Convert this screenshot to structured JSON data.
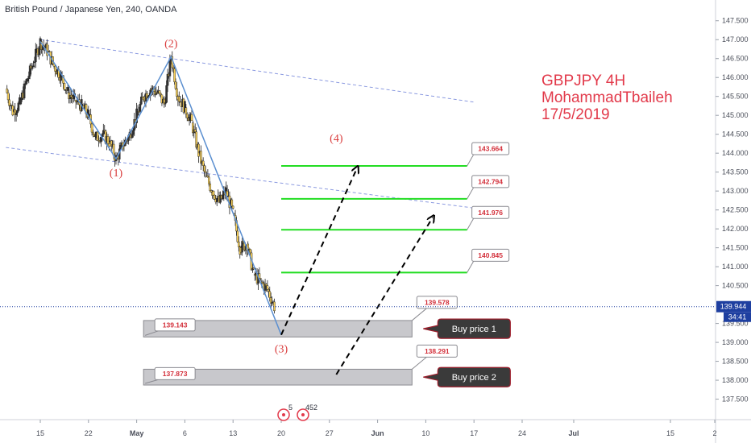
{
  "header": {
    "title": "British Pound / Japanese Yen, 240, OANDA"
  },
  "watermark": {
    "line1": "GBPJPY 4H",
    "line2": "MohammadTbaileh",
    "line3": "17/5/2019"
  },
  "current_price": {
    "value": 139.944,
    "label": "139.944",
    "countdown": "34:41",
    "color": "#1e3fa0"
  },
  "chart_data": {
    "type": "line",
    "symbol": "GBPJPY",
    "timeframe": "240",
    "broker": "OANDA",
    "x_tick_labels": [
      "15",
      "22",
      "May",
      "6",
      "13",
      "20",
      "27",
      "Jun",
      "10",
      "17",
      "24",
      "Jul",
      "15",
      "2"
    ],
    "y_tick_labels": [
      "147.500",
      "147.000",
      "146.500",
      "146.000",
      "145.500",
      "145.000",
      "144.500",
      "144.000",
      "143.500",
      "143.000",
      "142.500",
      "142.000",
      "141.500",
      "141.000",
      "140.500",
      "139.500",
      "139.000",
      "138.500",
      "138.000",
      "137.500"
    ],
    "ylim": [
      137.15,
      147.75
    ],
    "price_path": [
      {
        "date": "2019-04-10",
        "price": 145.7
      },
      {
        "date": "2019-04-11",
        "price": 145.1
      },
      {
        "date": "2019-04-12",
        "price": 145.3
      },
      {
        "date": "2019-04-13",
        "price": 145.9
      },
      {
        "date": "2019-04-14",
        "price": 146.4
      },
      {
        "date": "2019-04-15",
        "price": 146.95
      },
      {
        "date": "2019-04-16",
        "price": 146.7
      },
      {
        "date": "2019-04-17",
        "price": 146.3
      },
      {
        "date": "2019-04-18",
        "price": 146.05
      },
      {
        "date": "2019-04-19",
        "price": 145.6
      },
      {
        "date": "2019-04-20",
        "price": 145.4
      },
      {
        "date": "2019-04-21",
        "price": 145.25
      },
      {
        "date": "2019-04-22",
        "price": 145.0
      },
      {
        "date": "2019-04-23",
        "price": 144.4
      },
      {
        "date": "2019-04-24",
        "price": 144.5
      },
      {
        "date": "2019-04-25",
        "price": 144.3
      },
      {
        "date": "2019-04-26",
        "price": 143.85
      },
      {
        "date": "2019-04-27",
        "price": 144.2
      },
      {
        "date": "2019-04-28",
        "price": 144.5
      },
      {
        "date": "2019-04-29",
        "price": 145.0
      },
      {
        "date": "2019-04-30",
        "price": 145.5
      },
      {
        "date": "2019-05-01",
        "price": 145.7
      },
      {
        "date": "2019-05-02",
        "price": 145.6
      },
      {
        "date": "2019-05-03",
        "price": 145.3
      },
      {
        "date": "2019-05-04",
        "price": 146.55
      },
      {
        "date": "2019-05-05",
        "price": 145.5
      },
      {
        "date": "2019-05-06",
        "price": 145.2
      },
      {
        "date": "2019-05-07",
        "price": 144.8
      },
      {
        "date": "2019-05-08",
        "price": 144.0
      },
      {
        "date": "2019-05-09",
        "price": 143.4
      },
      {
        "date": "2019-05-10",
        "price": 143.0
      },
      {
        "date": "2019-05-11",
        "price": 142.7
      },
      {
        "date": "2019-05-12",
        "price": 143.0
      },
      {
        "date": "2019-05-13",
        "price": 142.4
      },
      {
        "date": "2019-05-14",
        "price": 141.5
      },
      {
        "date": "2019-05-15",
        "price": 141.6
      },
      {
        "date": "2019-05-16",
        "price": 140.8
      },
      {
        "date": "2019-05-17",
        "price": 140.6
      },
      {
        "date": "2019-05-18",
        "price": 140.4
      },
      {
        "date": "2019-05-19",
        "price": 139.95
      }
    ],
    "wave_lines": [
      {
        "label": "(1)",
        "date": "2019-04-26",
        "price": 143.85,
        "label_pos": "below"
      },
      {
        "label": "(2)",
        "date": "2019-05-04",
        "price": 146.55,
        "label_pos": "above"
      },
      {
        "label": "(3)",
        "date": "2019-05-20",
        "price": 139.2,
        "label_pos": "below"
      }
    ],
    "wave_path": [
      {
        "date": "2019-04-15",
        "price": 146.95
      },
      {
        "date": "2019-04-26",
        "price": 143.85
      },
      {
        "date": "2019-05-04",
        "price": 146.55
      },
      {
        "date": "2019-05-20",
        "price": 139.2
      }
    ],
    "channel_lines": [
      {
        "start_date": "2019-04-15",
        "start_price": 147.0,
        "end_date": "2019-06-17",
        "end_price": 145.35
      },
      {
        "start_date": "2019-04-10",
        "start_price": 144.15,
        "end_date": "2019-06-17",
        "end_price": 142.55
      }
    ],
    "wave4_label": {
      "text": "(4)",
      "date": "2019-05-28",
      "price": 144.3
    },
    "targets": [
      {
        "value": 143.664,
        "label": "143.664",
        "start_date": "2019-05-20",
        "end_date": "2019-06-16",
        "color": "#22dd22"
      },
      {
        "value": 142.794,
        "label": "142.794",
        "start_date": "2019-05-20",
        "end_date": "2019-06-16",
        "color": "#22dd22"
      },
      {
        "value": 141.976,
        "label": "141.976",
        "start_date": "2019-05-20",
        "end_date": "2019-06-16",
        "color": "#22dd22"
      },
      {
        "value": 140.845,
        "label": "140.845",
        "start_date": "2019-05-20",
        "end_date": "2019-06-16",
        "color": "#22dd22"
      }
    ],
    "buy_zones": [
      {
        "name": "Buy price 1",
        "low": 139.143,
        "high": 139.578,
        "low_label": "139.143",
        "high_label": "139.578",
        "start_date": "2019-04-30",
        "end_date": "2019-06-08"
      },
      {
        "name": "Buy price 2",
        "low": 137.873,
        "high": 138.291,
        "low_label": "137.873",
        "high_label": "138.291",
        "start_date": "2019-04-30",
        "end_date": "2019-06-08"
      }
    ],
    "projection_arrows": [
      {
        "start_date": "2019-05-20",
        "start_price": 139.2,
        "end_date": "2019-05-31",
        "end_price": 143.6
      },
      {
        "start_date": "2019-05-28",
        "start_price": 138.15,
        "end_date": "2019-06-11",
        "end_price": 142.3
      }
    ],
    "events_label": "452",
    "events_count": "5"
  },
  "colors": {
    "up_candle": "#333333",
    "down_candle": "#f6cf5b",
    "wave": "#5b8fd0",
    "channel": "#8b9ae0",
    "target": "#22dd22",
    "zone_fill": "#c8c8cc",
    "buy_label_bg": "#3a3a3a",
    "buy_label_border": "#9b1c2a",
    "text_red": "#e2394a"
  }
}
